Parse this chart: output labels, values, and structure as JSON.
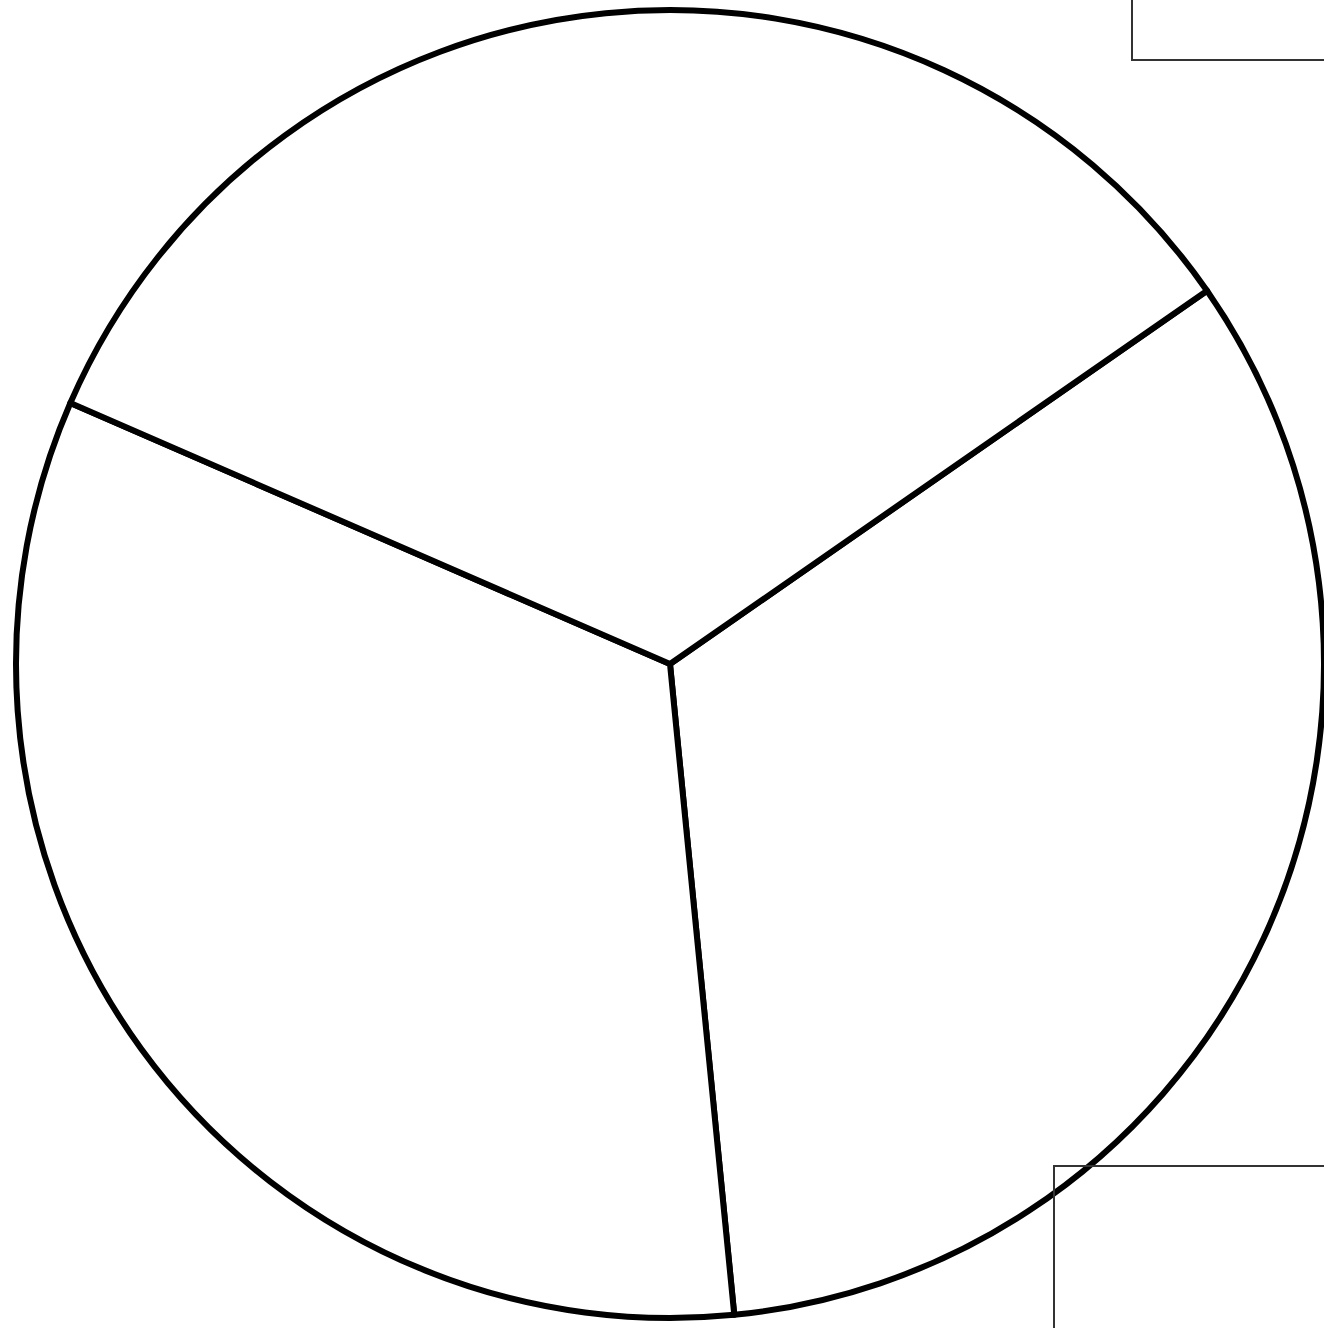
{
  "chart_data": {
    "type": "pie",
    "categories": [
      null,
      null,
      null
    ],
    "values": [
      33.1,
      33.1,
      33.8
    ],
    "colors": [
      "#ffffff",
      "#ffffff",
      "#ffffff"
    ]
  }
}
